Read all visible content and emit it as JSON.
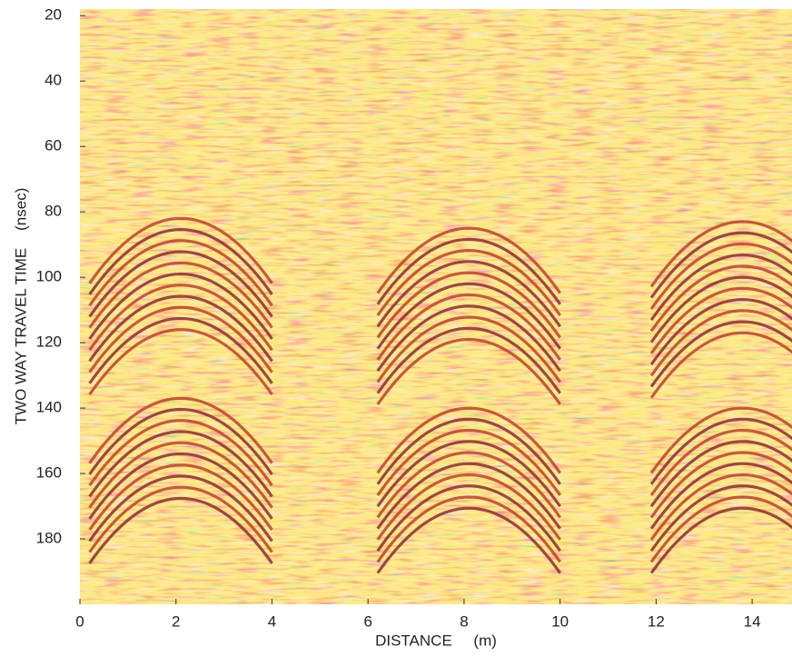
{
  "chart_data": {
    "type": "image",
    "xlabel": "DISTANCE     (m)",
    "ylabel": "TWO WAY TRAVEL TIME    (nsec)",
    "xlim": [
      0,
      14.83
    ],
    "ylim": [
      18,
      200
    ],
    "y_inverted": true,
    "xticks": [
      0,
      2,
      4,
      6,
      8,
      10,
      12,
      14
    ],
    "yticks": [
      20,
      40,
      60,
      80,
      100,
      120,
      140,
      160,
      180
    ]
  }
}
